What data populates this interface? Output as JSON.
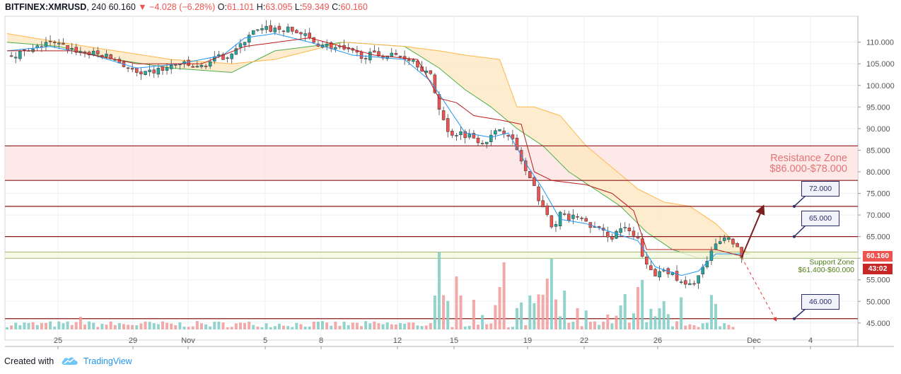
{
  "header": {
    "symbol": "BITFINEX:XMRUSD",
    "interval": "240",
    "last": "60.160",
    "change_arrow": "▼",
    "change": "−4.028 (−6.28%)",
    "o_label": "O:",
    "o": "61.101",
    "h_label": "H:",
    "h": "63.095",
    "l_label": "L:",
    "l": "59.349",
    "c_label": "C:",
    "c": "60.160"
  },
  "footer": {
    "created_with": "Created with",
    "brand": "TradingView",
    "logo_icon": "tradingview-cloud-icon"
  },
  "price_tags": {
    "last_price": "60.160",
    "countdown": "43:02"
  },
  "annotations": {
    "resistance_line1": "Resistance Zone",
    "resistance_line2": "$86.000-$78.000",
    "support_line1": "Support Zone",
    "support_line2": "$61.400-$60.000",
    "callouts": [
      "72.000",
      "65.000",
      "46.000"
    ]
  },
  "colors": {
    "up": "#26a69a",
    "down": "#ef5350",
    "volume_up": "#80cbc4",
    "volume_down": "#ef9a9a",
    "cloud": "#fde9c4",
    "cloud_green_line": "#4caf50",
    "cloud_orange_line": "#ffb74d",
    "tenkan": "#2196f3",
    "kijun": "#b71c1c",
    "level_line": "#8b1a1a",
    "resistance_fill": "#fde1e1",
    "support_line": "#6b8e23",
    "arrow": "#7b1f1f"
  },
  "chart_data": {
    "type": "candlestick",
    "title": "",
    "y_axis_ticks": [
      "45.000",
      "50.000",
      "55.000",
      "60.000",
      "65.000",
      "70.000",
      "75.000",
      "80.000",
      "85.000",
      "90.000",
      "95.000",
      "100.000",
      "105.000",
      "110.000"
    ],
    "y_range": [
      43.5,
      116
    ],
    "x_axis_ticks": [
      "25",
      "29",
      "Nov",
      "5",
      "8",
      "12",
      "15",
      "19",
      "22",
      "26",
      "Dec",
      "4"
    ],
    "horizontal_levels": [
      86,
      78,
      72,
      65,
      61.4,
      60,
      46
    ],
    "zones": [
      {
        "name": "Resistance Zone",
        "from": 78,
        "to": 86
      },
      {
        "name": "Support Zone",
        "from": 60,
        "to": 61.4
      }
    ],
    "price_path": [
      [
        0,
        107
      ],
      [
        6,
        108
      ],
      [
        9,
        110
      ],
      [
        13,
        109
      ],
      [
        18,
        107.5
      ],
      [
        22,
        107
      ],
      [
        25,
        106
      ],
      [
        28,
        104
      ],
      [
        31,
        102
      ],
      [
        33,
        103
      ],
      [
        37,
        104
      ],
      [
        40,
        105
      ],
      [
        44,
        104
      ],
      [
        48,
        106
      ],
      [
        51,
        107
      ],
      [
        54,
        109
      ],
      [
        56,
        112
      ],
      [
        60,
        113
      ],
      [
        64,
        113
      ],
      [
        68,
        112
      ],
      [
        71,
        110
      ],
      [
        75,
        109
      ],
      [
        78,
        108
      ],
      [
        82,
        107
      ],
      [
        86,
        107
      ],
      [
        90,
        107
      ],
      [
        94,
        106
      ],
      [
        98,
        102
      ],
      [
        100,
        95
      ],
      [
        102,
        89
      ],
      [
        105,
        89
      ],
      [
        108,
        88
      ],
      [
        110,
        87
      ],
      [
        112,
        88
      ],
      [
        114,
        90
      ],
      [
        116,
        89
      ],
      [
        118,
        85
      ],
      [
        120,
        80
      ],
      [
        122,
        76
      ],
      [
        124,
        72
      ],
      [
        126,
        67
      ],
      [
        128,
        70
      ],
      [
        130,
        69
      ],
      [
        132,
        70
      ],
      [
        134,
        68
      ],
      [
        136,
        67
      ],
      [
        138,
        66
      ],
      [
        140,
        65
      ],
      [
        142,
        67
      ],
      [
        144,
        66
      ],
      [
        146,
        64
      ],
      [
        148,
        58
      ],
      [
        150,
        56
      ],
      [
        152,
        58
      ],
      [
        154,
        56
      ],
      [
        156,
        54
      ],
      [
        158,
        53.5
      ],
      [
        160,
        56
      ],
      [
        162,
        59
      ],
      [
        164,
        63
      ],
      [
        166,
        65
      ],
      [
        168,
        64
      ],
      [
        170,
        60.2
      ]
    ],
    "tenkan_sen": [
      [
        0,
        108
      ],
      [
        10,
        109
      ],
      [
        20,
        107
      ],
      [
        30,
        104
      ],
      [
        40,
        105
      ],
      [
        50,
        107
      ],
      [
        55,
        111
      ],
      [
        62,
        112
      ],
      [
        70,
        110
      ],
      [
        80,
        107
      ],
      [
        92,
        106
      ],
      [
        98,
        101
      ],
      [
        102,
        95
      ],
      [
        106,
        89
      ],
      [
        112,
        88
      ],
      [
        116,
        89
      ],
      [
        120,
        82
      ],
      [
        124,
        76
      ],
      [
        128,
        69
      ],
      [
        134,
        68
      ],
      [
        140,
        66
      ],
      [
        146,
        64
      ],
      [
        150,
        58
      ],
      [
        156,
        56
      ],
      [
        160,
        57
      ],
      [
        164,
        61
      ],
      [
        168,
        61
      ],
      [
        170,
        61
      ]
    ],
    "kijun_sen": [
      [
        0,
        108
      ],
      [
        15,
        108
      ],
      [
        30,
        105
      ],
      [
        45,
        105
      ],
      [
        55,
        109
      ],
      [
        70,
        111
      ],
      [
        85,
        107
      ],
      [
        95,
        106
      ],
      [
        100,
        97
      ],
      [
        104,
        96
      ],
      [
        108,
        93
      ],
      [
        114,
        92
      ],
      [
        119,
        91
      ],
      [
        122,
        80
      ],
      [
        126,
        78
      ],
      [
        134,
        77
      ],
      [
        140,
        75
      ],
      [
        145,
        71
      ],
      [
        148,
        62
      ],
      [
        156,
        62
      ],
      [
        160,
        62
      ],
      [
        164,
        62
      ],
      [
        170,
        60.5
      ]
    ],
    "senkou_a": [
      [
        0,
        110
      ],
      [
        12,
        109
      ],
      [
        25,
        106
      ],
      [
        38,
        104
      ],
      [
        52,
        103
      ],
      [
        62,
        108
      ],
      [
        78,
        110
      ],
      [
        92,
        109
      ],
      [
        100,
        104
      ],
      [
        106,
        99
      ],
      [
        112,
        95
      ],
      [
        118,
        90
      ],
      [
        124,
        86
      ],
      [
        130,
        80
      ],
      [
        136,
        76
      ],
      [
        142,
        72
      ],
      [
        148,
        66
      ],
      [
        154,
        62
      ],
      [
        160,
        60
      ],
      [
        166,
        60.5
      ],
      [
        172,
        61
      ]
    ],
    "senkou_b": [
      [
        0,
        112
      ],
      [
        12,
        110
      ],
      [
        25,
        108
      ],
      [
        38,
        106
      ],
      [
        52,
        105
      ],
      [
        62,
        106
      ],
      [
        78,
        110
      ],
      [
        92,
        109
      ],
      [
        100,
        108
      ],
      [
        106,
        107
      ],
      [
        114,
        106
      ],
      [
        118,
        95
      ],
      [
        122,
        95
      ],
      [
        128,
        93
      ],
      [
        134,
        86
      ],
      [
        140,
        81
      ],
      [
        146,
        76
      ],
      [
        152,
        73
      ],
      [
        158,
        72
      ],
      [
        164,
        68
      ],
      [
        170,
        62
      ],
      [
        172,
        61
      ]
    ],
    "projection_arrows": [
      {
        "from": [
          170,
          60.2
        ],
        "to": [
          175,
          72
        ],
        "style": "solid"
      },
      {
        "from": [
          170,
          60.2
        ],
        "to": [
          178,
          45.5
        ],
        "style": "dashed"
      }
    ]
  }
}
